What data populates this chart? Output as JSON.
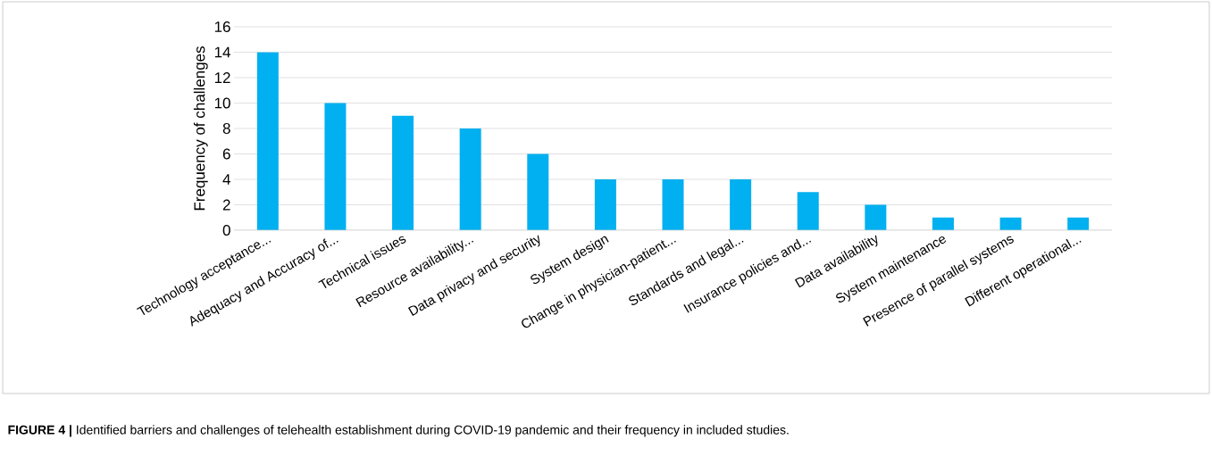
{
  "chart_data": {
    "type": "bar",
    "ylabel": "Frequency of challenges",
    "categories": [
      "Technology acceptance...",
      "Adequacy and Accuracy of...",
      "Technical issues",
      "Resource availability...",
      "Data privacy and security",
      "System design",
      "Change in physician-patient...",
      "Standards and legal...",
      "Insurance policies and...",
      "Data availability",
      "System maintenance",
      "Presence of parallel systems",
      "Different operational..."
    ],
    "values": [
      14,
      10,
      9,
      8,
      6,
      4,
      4,
      4,
      3,
      2,
      1,
      1,
      1
    ],
    "color": "#00b0f0",
    "ylim": [
      0,
      16
    ],
    "yticks": [
      0,
      2,
      4,
      6,
      8,
      10,
      12,
      14,
      16
    ],
    "grid": "y",
    "annotations": [
      "**FIGURE 4 |** Identified barriers and challenges of telehealth establishment during COVID-19 pandemic and their frequency in included studies."
    ]
  }
}
